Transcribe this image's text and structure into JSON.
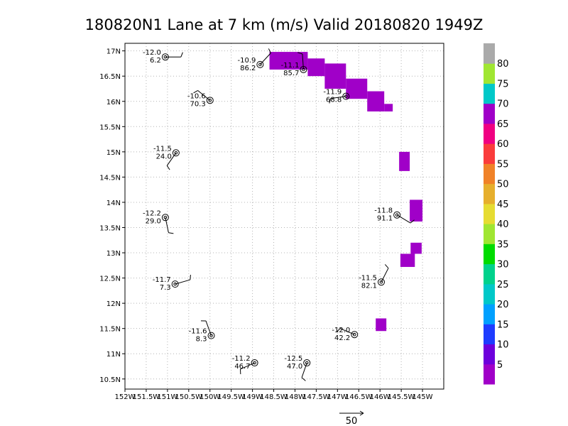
{
  "chart_data": {
    "type": "scatter",
    "title": "180820N1 Lane at 7 km (m/s) Valid 20180820 1949Z",
    "xlim": [
      -152,
      -144.5
    ],
    "ylim": [
      10.3,
      17.15
    ],
    "x_tick_labels": [
      "152W",
      "151.5W",
      "151W",
      "150.5W",
      "150W",
      "149.5W",
      "149W",
      "148.5W",
      "148W",
      "147.5W",
      "147W",
      "146.5W",
      "146W",
      "145.5W",
      "145W"
    ],
    "y_tick_labels": [
      "10.5N",
      "11N",
      "11.5N",
      "12N",
      "12.5N",
      "13N",
      "13.5N",
      "14N",
      "14.5N",
      "15N",
      "15.5N",
      "16N",
      "16.5N",
      "17N"
    ],
    "grid": true,
    "observations": [
      {
        "lon": -151.05,
        "lat": 16.88,
        "temp": "-12.0",
        "wind": "6.2"
      },
      {
        "lon": -148.82,
        "lat": 16.73,
        "temp": "-10.9",
        "wind": "86.2"
      },
      {
        "lon": -147.8,
        "lat": 16.63,
        "temp": "-11.1",
        "wind": "85.7"
      },
      {
        "lon": -150.0,
        "lat": 16.02,
        "temp": "-10.6",
        "wind": "70.3"
      },
      {
        "lon": -146.8,
        "lat": 16.1,
        "temp": "-11.9",
        "wind": "68.8"
      },
      {
        "lon": -150.8,
        "lat": 14.98,
        "temp": "-11.5",
        "wind": "24.0"
      },
      {
        "lon": -151.05,
        "lat": 13.7,
        "temp": "-12.2",
        "wind": "29.0"
      },
      {
        "lon": -145.6,
        "lat": 13.75,
        "temp": "-11.8",
        "wind": "91.1"
      },
      {
        "lon": -150.82,
        "lat": 12.38,
        "temp": "-11.7",
        "wind": "7.3"
      },
      {
        "lon": -145.97,
        "lat": 12.42,
        "temp": "-11.5",
        "wind": "82.1"
      },
      {
        "lon": -149.97,
        "lat": 11.36,
        "temp": "-11.6",
        "wind": "8.3"
      },
      {
        "lon": -146.6,
        "lat": 11.38,
        "temp": "-12.0",
        "wind": "42.2"
      },
      {
        "lon": -148.95,
        "lat": 10.82,
        "temp": "-11.2",
        "wind": "46.7"
      },
      {
        "lon": -147.72,
        "lat": 10.82,
        "temp": "-12.5",
        "wind": "47.0"
      }
    ],
    "wind_regions": [
      {
        "lon": [
          -148.6,
          -147.7
        ],
        "lat": [
          16.63,
          16.98
        ],
        "level": 70
      },
      {
        "lon": [
          -147.7,
          -147.3
        ],
        "lat": [
          16.5,
          16.85
        ],
        "level": 70
      },
      {
        "lon": [
          -147.3,
          -146.8
        ],
        "lat": [
          16.25,
          16.75
        ],
        "level": 70
      },
      {
        "lon": [
          -146.8,
          -146.3
        ],
        "lat": [
          16.05,
          16.45
        ],
        "level": 70
      },
      {
        "lon": [
          -146.3,
          -145.9
        ],
        "lat": [
          15.8,
          16.2
        ],
        "level": 70
      },
      {
        "lon": [
          -145.9,
          -145.7
        ],
        "lat": [
          15.8,
          15.95
        ],
        "level": 70
      },
      {
        "lon": [
          -145.55,
          -145.3
        ],
        "lat": [
          14.62,
          15.0
        ],
        "level": 70
      },
      {
        "lon": [
          -145.3,
          -145.0
        ],
        "lat": [
          13.62,
          14.05
        ],
        "level": 70
      },
      {
        "lon": [
          -145.28,
          -145.02
        ],
        "lat": [
          12.98,
          13.2
        ],
        "level": 70
      },
      {
        "lon": [
          -145.52,
          -145.18
        ],
        "lat": [
          12.72,
          12.98
        ],
        "level": 70
      },
      {
        "lon": [
          -146.1,
          -145.85
        ],
        "lat": [
          11.45,
          11.7
        ],
        "level": 70
      }
    ],
    "colorbar": {
      "labels": [
        "5",
        "10",
        "15",
        "20",
        "25",
        "30",
        "35",
        "40",
        "45",
        "50",
        "55",
        "60",
        "65",
        "70",
        "75",
        "80"
      ],
      "colors": [
        "#a000c8",
        "#6e00dc",
        "#1e3cff",
        "#00a0ff",
        "#00c8c8",
        "#00d28c",
        "#00dc00",
        "#a0e632",
        "#e6dc32",
        "#e6af2d",
        "#f08228",
        "#fa3c3c",
        "#f00082",
        "#a000c8",
        "#00c8c8",
        "#a0e632",
        "#aaaaaa"
      ]
    },
    "vector_legend": "50"
  }
}
